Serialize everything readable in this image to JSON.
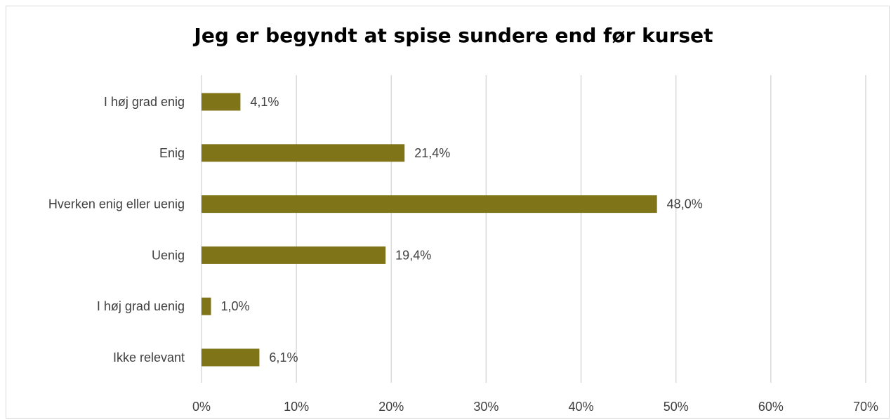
{
  "chart_data": {
    "type": "bar",
    "orientation": "horizontal",
    "title": "Jeg er begyndt at spise sundere end før kurset",
    "categories": [
      "I høj grad enig",
      "Enig",
      "Hverken enig eller uenig",
      "Uenig",
      "I høj grad uenig",
      "Ikke relevant"
    ],
    "values": [
      4.1,
      21.4,
      48.0,
      19.4,
      1.0,
      6.1
    ],
    "data_labels": [
      "4,1%",
      "21,4%",
      "48,0%",
      "19,4%",
      "1,0%",
      "6,1%"
    ],
    "xlim": [
      0,
      70
    ],
    "x_ticks": [
      0,
      10,
      20,
      30,
      40,
      50,
      60,
      70
    ],
    "x_tick_labels": [
      "0%",
      "10%",
      "20%",
      "30%",
      "40%",
      "50%",
      "60%",
      "70%"
    ],
    "xlabel": "",
    "ylabel": "",
    "grid": true,
    "legend": "none",
    "colors": {
      "bar": "#7f7518",
      "grid": "#d9d9d9",
      "text": "#404040"
    }
  }
}
